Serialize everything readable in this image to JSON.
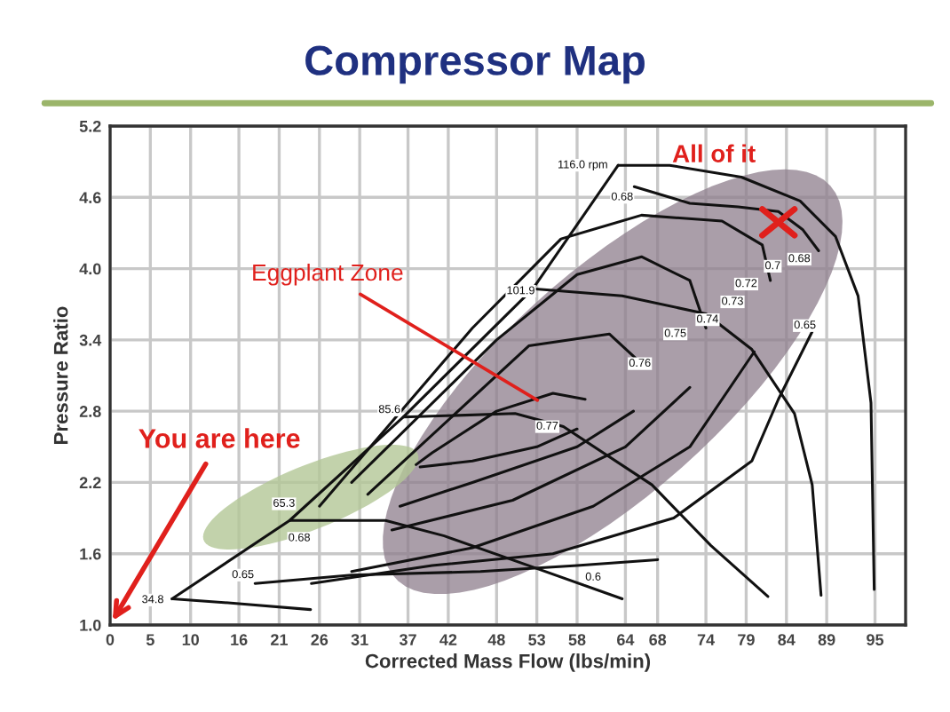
{
  "chart_data": {
    "type": "line",
    "title": "Compressor Map",
    "xlabel": "Corrected Mass Flow (lbs/min)",
    "ylabel": "Pressure Ratio",
    "xlim": [
      0,
      98.8
    ],
    "ylim": [
      1.0,
      5.2
    ],
    "xticks": [
      0,
      5,
      10,
      16,
      21,
      26,
      31,
      37,
      42,
      48,
      53,
      58,
      64,
      68,
      74,
      79,
      84,
      89,
      95
    ],
    "yticks": [
      {
        "value": 1.0,
        "label": "1.0"
      },
      1.6,
      2.2,
      2.8,
      3.4,
      {
        "value": 4.0,
        "label": "4.0"
      },
      4.6,
      5.2
    ],
    "grid": true,
    "legend": false,
    "marker": "none",
    "line_style": "solid",
    "series": [
      {
        "color": "#111111",
        "x": [
          7.7,
          22.3,
          36.4,
          52.5,
          63.1
        ],
        "values": [
          1.22,
          1.88,
          2.75,
          3.83,
          4.87
        ]
      },
      {
        "color": "#111111",
        "x": [
          7.7,
          16,
          24.9
        ],
        "values": [
          1.22,
          1.18,
          1.13
        ]
      },
      {
        "color": "#111111",
        "x": [
          22.3,
          34.2,
          41.5,
          52,
          63.6
        ],
        "values": [
          1.88,
          1.88,
          1.75,
          1.5,
          1.22
        ]
      },
      {
        "color": "#111111",
        "x": [
          36.4,
          50.3,
          56.3,
          67.3,
          74.6,
          81.7
        ],
        "values": [
          2.75,
          2.78,
          2.67,
          2.18,
          1.67,
          1.24
        ]
      },
      {
        "color": "#111111",
        "x": [
          52.5,
          63.6,
          74,
          79.7,
          85,
          87.2,
          88.3
        ],
        "values": [
          3.83,
          3.77,
          3.62,
          3.32,
          2.78,
          2.18,
          1.25
        ]
      },
      {
        "color": "#111111",
        "x": [
          63.1,
          69.5,
          78.4,
          85.7,
          90.1,
          92.9,
          94.5,
          94.9
        ],
        "values": [
          4.87,
          4.87,
          4.77,
          4.57,
          4.27,
          3.77,
          2.87,
          1.3
        ]
      },
      {
        "color": "#111111",
        "x": [
          65.1,
          72,
          78,
          83,
          86,
          88
        ],
        "values": [
          4.69,
          4.55,
          4.52,
          4.48,
          4.33,
          4.15
        ]
      },
      {
        "color": "#111111",
        "x": [
          38,
          40,
          48,
          55,
          59
        ],
        "values": [
          2.35,
          2.45,
          2.8,
          2.95,
          2.9
        ]
      },
      {
        "color": "#111111",
        "x": [
          38.5,
          45,
          53,
          58
        ],
        "values": [
          2.33,
          2.38,
          2.5,
          2.65
        ]
      },
      {
        "color": "#111111",
        "x": [
          32,
          52,
          62,
          66
        ],
        "values": [
          2.1,
          3.35,
          3.45,
          3.2
        ]
      },
      {
        "color": "#111111",
        "x": [
          36,
          45,
          58,
          65
        ],
        "values": [
          2.0,
          2.2,
          2.5,
          2.8
        ]
      },
      {
        "color": "#111111",
        "x": [
          30,
          48,
          58,
          66,
          72,
          74
        ],
        "values": [
          2.2,
          3.4,
          3.95,
          4.1,
          3.9,
          3.5
        ]
      },
      {
        "color": "#111111",
        "x": [
          35,
          50,
          64,
          72
        ],
        "values": [
          1.8,
          2.05,
          2.5,
          3.0
        ]
      },
      {
        "color": "#111111",
        "x": [
          26,
          45,
          56,
          66,
          76,
          81,
          82
        ],
        "values": [
          2.0,
          3.5,
          4.25,
          4.45,
          4.4,
          4.2,
          3.9
        ]
      },
      {
        "color": "#111111",
        "x": [
          30,
          45,
          60,
          72,
          80
        ],
        "values": [
          1.45,
          1.65,
          2.0,
          2.5,
          3.3
        ]
      },
      {
        "color": "#111111",
        "x": [
          25,
          40,
          55,
          70,
          79.7,
          83,
          87.2
        ],
        "values": [
          1.35,
          1.5,
          1.6,
          1.9,
          2.38,
          2.9,
          3.47
        ]
      },
      {
        "color": "#111111",
        "x": [
          18,
          30,
          46,
          58,
          68
        ],
        "values": [
          1.35,
          1.42,
          1.45,
          1.5,
          1.55
        ]
      }
    ],
    "annotations": [
      "34.8",
      "65.3",
      "85.6",
      "101.9",
      "116.0 rpm",
      "0.68",
      "0.77",
      "0.76",
      "0.75",
      "0.74",
      "0.73",
      "0.72",
      "0.7",
      "0.68",
      "0.65",
      "0.6",
      "0.65",
      "0.68",
      {
        "text": "Eggplant Zone",
        "x": 53.6,
        "y": 2.87
      },
      "You are here",
      "All of it"
    ]
  }
}
